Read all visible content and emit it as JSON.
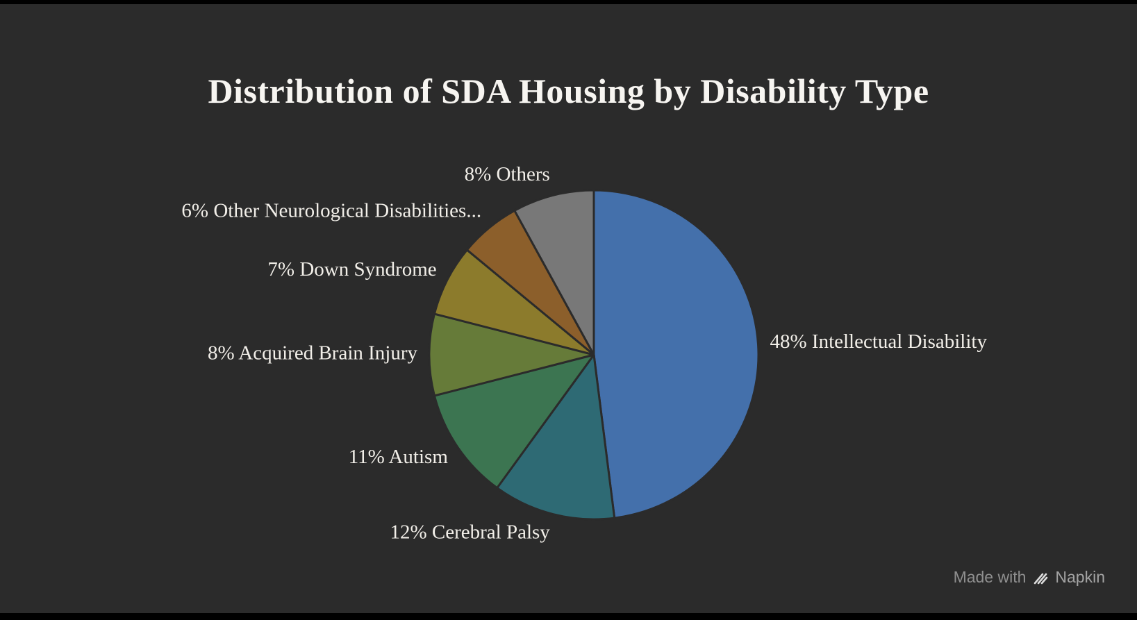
{
  "chart_data": {
    "type": "pie",
    "title": "Distribution of SDA Housing by Disability Type",
    "direction": "clockwise",
    "start_angle_deg": 0,
    "legend_position": "none",
    "labels_outside": true,
    "background_color": "#2b2b2b",
    "slice_stroke_color": "#2b2b2b",
    "label_color": "#f2efe9",
    "slices": [
      {
        "label": "Intellectual Disability",
        "value": 48,
        "display": "48% Intellectual Disability",
        "color": "#4470ab"
      },
      {
        "label": "Cerebral Palsy",
        "value": 12,
        "display": "12% Cerebral Palsy",
        "color": "#2e6a74"
      },
      {
        "label": "Autism",
        "value": 11,
        "display": "11% Autism",
        "color": "#3c7551"
      },
      {
        "label": "Acquired Brain Injury",
        "value": 8,
        "display": "8% Acquired Brain Injury",
        "color": "#667b39"
      },
      {
        "label": "Down Syndrome",
        "value": 7,
        "display": "7% Down Syndrome",
        "color": "#8c7b2c"
      },
      {
        "label": "Other Neurological Disabilities...",
        "value": 6,
        "display": "6% Other Neurological Disabilities...",
        "color": "#8c5f2b"
      },
      {
        "label": "Others",
        "value": 8,
        "display": "8% Others",
        "color": "#787878"
      }
    ]
  },
  "footer": {
    "made_with": "Made with",
    "brand": "Napkin"
  }
}
